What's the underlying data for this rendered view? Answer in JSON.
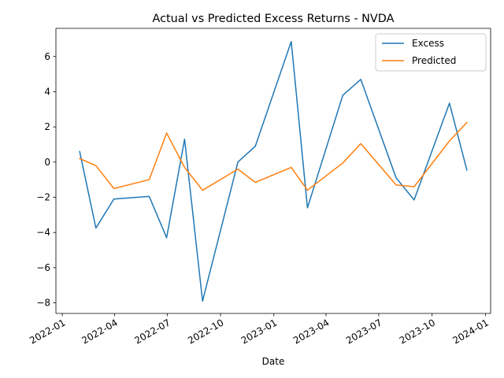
{
  "chart_data": {
    "type": "line",
    "title": "Actual vs Predicted Excess Returns - NVDA",
    "xlabel": "Date",
    "ylabel": "",
    "x_axis_type": "date",
    "xlim": [
      "2021-12-21",
      "2024-01-10"
    ],
    "ylim": [
      -8.6,
      7.6
    ],
    "xticks": [
      "2022-01-01",
      "2022-04-01",
      "2022-07-01",
      "2022-10-01",
      "2023-01-01",
      "2023-04-01",
      "2023-07-01",
      "2023-10-01",
      "2024-01-01"
    ],
    "xtick_labels": [
      "2022-01",
      "2022-04",
      "2022-07",
      "2022-10",
      "2023-01",
      "2023-04",
      "2023-07",
      "2023-10",
      "2024-01"
    ],
    "yticks": [
      6,
      4,
      2,
      0,
      -2,
      -4,
      -6,
      -8
    ],
    "ytick_labels": [
      "6",
      "4",
      "2",
      "0",
      "−2",
      "−4",
      "−6",
      "−8"
    ],
    "x": [
      "2022-01-31",
      "2022-02-28",
      "2022-03-31",
      "2022-05-31",
      "2022-06-30",
      "2022-07-31",
      "2022-08-31",
      "2022-10-31",
      "2022-11-30",
      "2023-01-31",
      "2023-02-28",
      "2023-04-30",
      "2023-05-31",
      "2023-07-31",
      "2023-08-31",
      "2023-10-31",
      "2023-11-30"
    ],
    "series": [
      {
        "name": "Excess",
        "color": "#1f77b4",
        "values": [
          0.6,
          -3.75,
          -2.1,
          -1.95,
          -4.3,
          1.3,
          -7.9,
          0.0,
          0.9,
          6.85,
          -2.6,
          3.8,
          4.7,
          -0.9,
          -2.15,
          3.35,
          -0.45
        ]
      },
      {
        "name": "Predicted",
        "color": "#ff7f0e",
        "values": [
          0.2,
          -0.2,
          -1.5,
          -1.0,
          1.65,
          -0.3,
          -1.6,
          -0.4,
          -1.15,
          -0.3,
          -1.6,
          -0.05,
          1.05,
          -1.3,
          -1.4,
          1.2,
          2.25
        ]
      }
    ],
    "grid": false,
    "legend_position": "top-right"
  }
}
